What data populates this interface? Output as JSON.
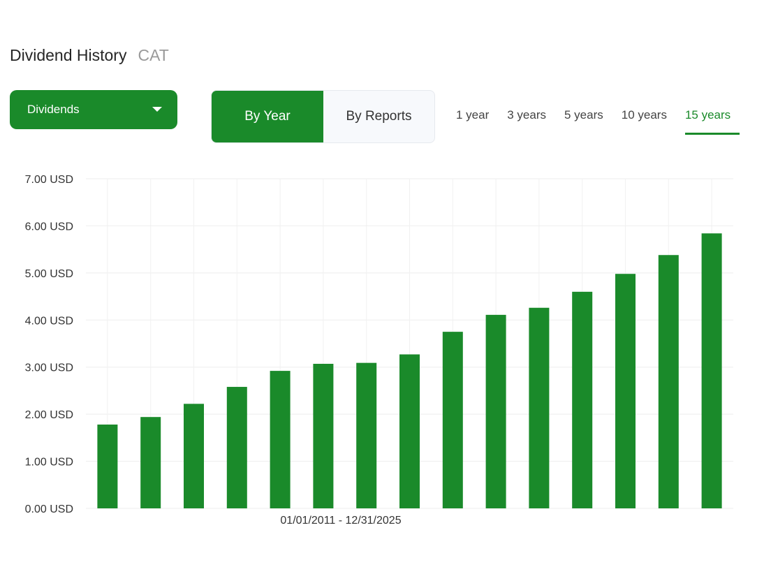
{
  "header": {
    "title": "Dividend History",
    "ticker": "CAT"
  },
  "controls": {
    "metric_dropdown": "Dividends",
    "view_options": [
      "By Year",
      "By Reports"
    ],
    "active_view": "By Year",
    "ranges": [
      "1 year",
      "3 years",
      "5 years",
      "10 years",
      "15 years"
    ],
    "active_range": "15 years"
  },
  "colors": {
    "accent": "#1a8a2a",
    "grid": "#eeeeee"
  },
  "chart_data": {
    "type": "bar",
    "unit": "USD",
    "date_range_label": "01/01/2011 - 12/31/2025",
    "ylim": [
      0,
      7
    ],
    "y_ticks": [
      "0.00 USD",
      "1.00 USD",
      "2.00 USD",
      "3.00 USD",
      "4.00 USD",
      "5.00 USD",
      "6.00 USD",
      "7.00 USD"
    ],
    "values": [
      1.78,
      1.94,
      2.22,
      2.58,
      2.92,
      3.07,
      3.09,
      3.27,
      3.75,
      4.11,
      4.26,
      4.6,
      4.98,
      5.38,
      5.84
    ],
    "grid": true,
    "legend": "none"
  }
}
